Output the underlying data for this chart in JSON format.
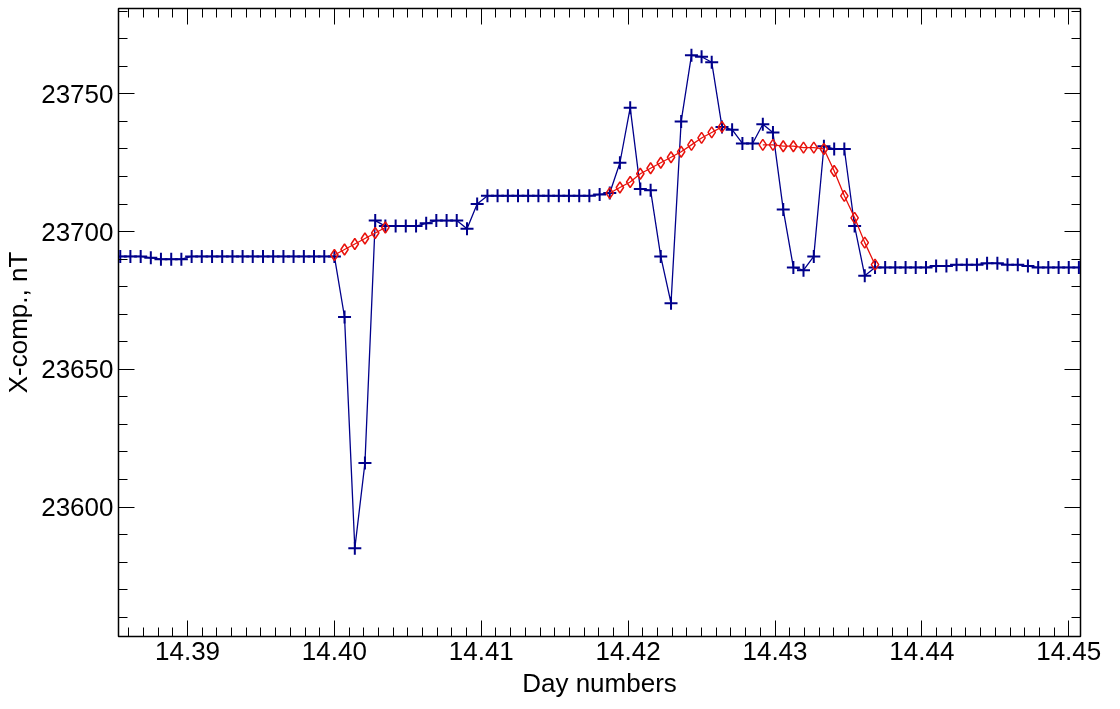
{
  "chart_data": {
    "type": "line",
    "xlabel": "Day numbers",
    "ylabel": "X-comp., nT",
    "xlim": [
      14.3853,
      14.4508
    ],
    "ylim": [
      23553,
      23781
    ],
    "xticks": [
      14.39,
      {
        "value": 14.4,
        "label": "14.40"
      },
      14.41,
      14.42,
      14.43,
      14.44,
      14.45
    ],
    "yticks": [
      23600,
      23650,
      23700,
      23750
    ],
    "grid": false,
    "series": [
      {
        "color": "#00008b",
        "marker": "cross",
        "x": [
          14.38542,
          14.38611,
          14.38681,
          14.3875,
          14.38819,
          14.38889,
          14.38958,
          14.39028,
          14.39097,
          14.39167,
          14.39236,
          14.39306,
          14.39375,
          14.39444,
          14.39514,
          14.39583,
          14.39653,
          14.39722,
          14.39792,
          14.39861,
          14.39931,
          14.4,
          14.40069,
          14.40139,
          14.40208,
          14.40278,
          14.40347,
          14.40417,
          14.40486,
          14.40556,
          14.40625,
          14.40694,
          14.40764,
          14.40833,
          14.40903,
          14.40972,
          14.41042,
          14.41111,
          14.41181,
          14.4125,
          14.41319,
          14.41389,
          14.41458,
          14.41528,
          14.41597,
          14.41667,
          14.41736,
          14.41806,
          14.41875,
          14.41944,
          14.42014,
          14.42083,
          14.42153,
          14.42222,
          14.42292,
          14.42361,
          14.42431,
          14.425,
          14.42569,
          14.42639,
          14.42708,
          14.42778,
          14.42847,
          14.42917,
          14.42986,
          14.43056,
          14.43125,
          14.43194,
          14.43264,
          14.43333,
          14.43403,
          14.43472,
          14.43542,
          14.43611,
          14.43681,
          14.4375,
          14.43819,
          14.43889,
          14.43958,
          14.44028,
          14.44097,
          14.44167,
          14.44236,
          14.44306,
          14.44375,
          14.44444,
          14.44514,
          14.44583,
          14.44653,
          14.44722,
          14.44792,
          14.44861,
          14.44931,
          14.45,
          14.45069
        ],
        "values": [
          23691,
          23691,
          23691,
          23690.5,
          23690,
          23690,
          23690,
          23691,
          23691,
          23691,
          23691,
          23691,
          23691,
          23691,
          23691,
          23691,
          23691,
          23691,
          23691,
          23691,
          23691,
          23691,
          23669,
          23585,
          23616,
          23704,
          23702,
          23702,
          23702,
          23702,
          23703,
          23704,
          23704,
          23704,
          23701,
          23710,
          23713,
          23713,
          23713,
          23713,
          23713,
          23713,
          23713,
          23713,
          23713,
          23713,
          23713,
          23713.5,
          23714,
          23725,
          23745,
          23715.5,
          23715,
          23691,
          23674,
          23740,
          23764,
          23763.5,
          23761.5,
          23738,
          23737,
          23732,
          23732,
          23739,
          23736,
          23708,
          23687,
          23686,
          23691,
          23731,
          23730,
          23730,
          23702,
          23684,
          23687,
          23687,
          23687,
          23687,
          23687,
          23687,
          23687.5,
          23687.5,
          23688,
          23688,
          23688,
          23688.5,
          23688.5,
          23688,
          23688,
          23687.5,
          23687,
          23687,
          23687,
          23687,
          23687
        ]
      },
      {
        "color": "#e8120c",
        "marker": "diamond",
        "x": [
          14.4,
          14.40069,
          14.40139,
          14.40208,
          14.40278,
          14.40347,
          14.40417,
          14.41875,
          14.41944,
          14.42014,
          14.42083,
          14.42153,
          14.42222,
          14.42292,
          14.42361,
          14.42431,
          14.425,
          14.42569,
          14.42639,
          14.42708,
          14.42917,
          14.42986,
          14.43056,
          14.43125,
          14.43194,
          14.43264,
          14.43333,
          14.43403,
          14.43472,
          14.43542,
          14.43611,
          14.43681
        ],
        "values": [
          23691.5,
          23693.5,
          23695.5,
          23697.5,
          23699.5,
          23701.5,
          null,
          23714,
          23716,
          23718,
          23721,
          23723,
          23725,
          23727,
          23729,
          23731.5,
          23734,
          23736,
          23738,
          null,
          23731.5,
          23731.5,
          23731,
          23731,
          23730.5,
          23730.5,
          23730,
          23722,
          23713,
          23705,
          23696,
          23688
        ]
      }
    ]
  }
}
